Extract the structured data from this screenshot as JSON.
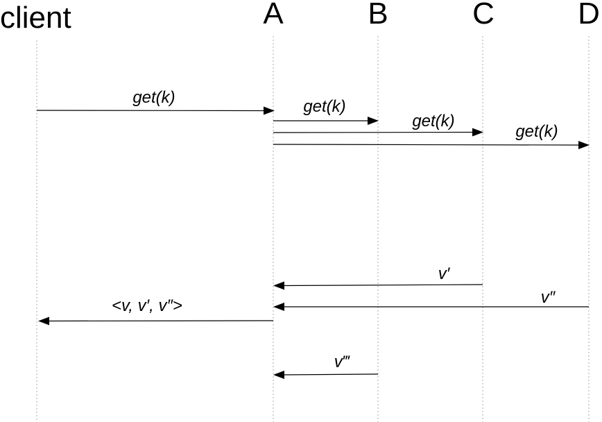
{
  "participants": {
    "client": "client",
    "a": "A",
    "b": "B",
    "c": "C",
    "d": "D"
  },
  "messages": {
    "client_to_a": "get(k)",
    "a_to_b": "get(k)",
    "a_to_c": "get(k)",
    "a_to_d": "get(k)",
    "c_to_a": "v′",
    "d_to_a": "v″",
    "a_to_client": "<v, v′, v″>",
    "b_to_a": "v‴"
  },
  "colors": {
    "lifeline": "#a8a8a8",
    "arrow": "#000000",
    "text": "#000000"
  }
}
